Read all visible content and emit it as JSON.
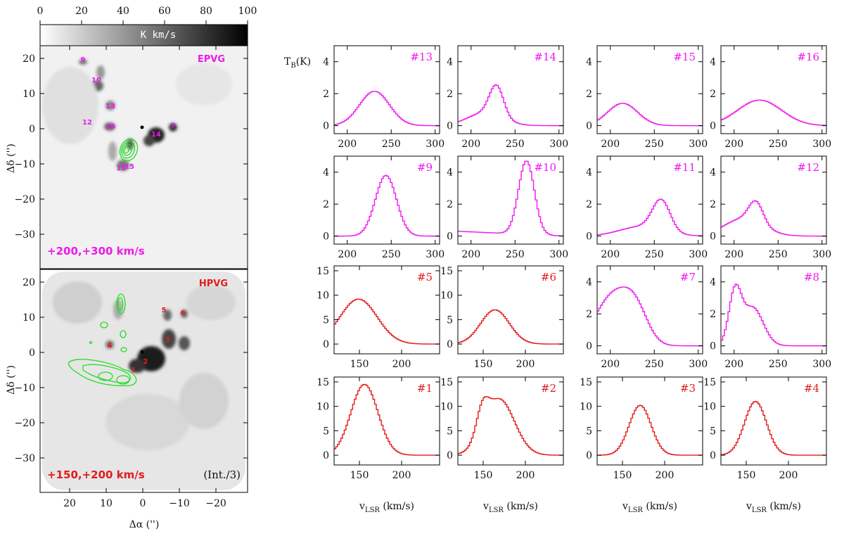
{
  "colors": {
    "magenta": "#ee18ee",
    "red": "#e21b1b",
    "contour": "#22dd22",
    "gray_note": "#9a9a9a"
  },
  "colorbar": {
    "ticks": [
      "0",
      "20",
      "40",
      "60",
      "80",
      "100"
    ],
    "label": "K km/s"
  },
  "maps": {
    "y_ticks": [
      "20",
      "10",
      "0",
      "−10",
      "−20",
      "−30"
    ],
    "x_ticks": [
      "20",
      "10",
      "0",
      "−10",
      "−20"
    ],
    "ylabel": "Δδ ('')",
    "xlabel": "Δα ('')",
    "top": {
      "tag": "EPVG",
      "range": "+200,+300 km/s",
      "markers": [
        "9",
        "10",
        "13",
        "12",
        "16",
        "14",
        "7",
        "11",
        "15"
      ]
    },
    "bottom": {
      "tag": "HPVG",
      "range": "+150,+200 km/s",
      "note": "(Int./3)",
      "markers": [
        "5",
        "6",
        "3",
        "4",
        "2",
        "1"
      ]
    }
  },
  "spectra": {
    "ylabel": "TB(K)",
    "xlabel": "vLSR (km/s)"
  },
  "chart_data": [
    {
      "type": "line",
      "id": "#13",
      "color": "magenta",
      "xlim": [
        185,
        305
      ],
      "ylim": [
        -0.5,
        5
      ],
      "xticks": [
        200,
        250,
        300
      ],
      "yticks": [
        0,
        2,
        4
      ],
      "gauss": [
        [
          2.15,
          230,
          17
        ]
      ]
    },
    {
      "type": "line",
      "id": "#14",
      "color": "magenta",
      "xlim": [
        185,
        305
      ],
      "ylim": [
        -0.5,
        5
      ],
      "xticks": [
        200,
        250,
        300
      ],
      "yticks": [
        0,
        2,
        4
      ],
      "gauss": [
        [
          1.9,
          228,
          8
        ],
        [
          0.8,
          215,
          20
        ]
      ]
    },
    {
      "type": "line",
      "id": "#15",
      "color": "magenta",
      "xlim": [
        185,
        305
      ],
      "ylim": [
        -0.5,
        5
      ],
      "xticks": [
        200,
        250,
        300
      ],
      "yticks": [
        0,
        2,
        4
      ],
      "gauss": [
        [
          1.4,
          213,
          17
        ]
      ]
    },
    {
      "type": "line",
      "id": "#16",
      "color": "magenta",
      "xlim": [
        185,
        305
      ],
      "ylim": [
        -0.5,
        5
      ],
      "xticks": [
        200,
        250,
        300
      ],
      "yticks": [
        0,
        2,
        4
      ],
      "gauss": [
        [
          1.6,
          228,
          25
        ]
      ]
    },
    {
      "type": "line",
      "id": "#9",
      "color": "magenta",
      "xlim": [
        185,
        305
      ],
      "ylim": [
        -0.5,
        5
      ],
      "xticks": [
        200,
        250,
        300
      ],
      "yticks": [
        0,
        2,
        4
      ],
      "gauss": [
        [
          3.8,
          243,
          12
        ]
      ]
    },
    {
      "type": "line",
      "id": "#10",
      "color": "magenta",
      "xlim": [
        185,
        305
      ],
      "ylim": [
        -0.5,
        5
      ],
      "xticks": [
        200,
        250,
        300
      ],
      "yticks": [
        0,
        2,
        4
      ],
      "gauss": [
        [
          4.6,
          262,
          9
        ]
      ],
      "base": 0.3
    },
    {
      "type": "line",
      "id": "#11",
      "color": "magenta",
      "xlim": [
        185,
        305
      ],
      "ylim": [
        -0.5,
        5
      ],
      "xticks": [
        200,
        250,
        300
      ],
      "yticks": [
        0,
        2,
        4
      ],
      "gauss": [
        [
          1.9,
          257,
          10
        ],
        [
          0.6,
          235,
          25
        ]
      ]
    },
    {
      "type": "line",
      "id": "#12",
      "color": "magenta",
      "xlim": [
        185,
        305
      ],
      "ylim": [
        -0.5,
        5
      ],
      "xticks": [
        200,
        250,
        300
      ],
      "yticks": [
        0,
        2,
        4
      ],
      "gauss": [
        [
          1.3,
          224,
          8
        ],
        [
          1.1,
          210,
          22
        ]
      ]
    },
    {
      "type": "line",
      "id": "#5",
      "color": "red",
      "xlim": [
        120,
        245
      ],
      "ylim": [
        -2,
        16
      ],
      "xticks": [
        150,
        200
      ],
      "yticks": [
        0,
        5,
        10,
        15
      ],
      "gauss": [
        [
          9.2,
          148,
          22
        ]
      ]
    },
    {
      "type": "line",
      "id": "#6",
      "color": "red",
      "xlim": [
        120,
        245
      ],
      "ylim": [
        -2,
        16
      ],
      "xticks": [
        150,
        200
      ],
      "yticks": [
        0,
        5,
        10,
        15
      ],
      "gauss": [
        [
          7.0,
          163,
          17
        ]
      ]
    },
    {
      "type": "line",
      "id": "#7",
      "color": "magenta",
      "xlim": [
        185,
        305
      ],
      "ylim": [
        -0.5,
        5
      ],
      "xticks": [
        200,
        250,
        300
      ],
      "yticks": [
        0,
        2,
        4
      ],
      "gauss": [
        [
          3.1,
          202,
          20
        ],
        [
          1.8,
          228,
          14
        ]
      ]
    },
    {
      "type": "line",
      "id": "#8",
      "color": "magenta",
      "xlim": [
        185,
        305
      ],
      "ylim": [
        -0.5,
        5
      ],
      "xticks": [
        200,
        250,
        300
      ],
      "yticks": [
        0,
        2,
        4
      ],
      "gauss": [
        [
          3.2,
          200,
          7
        ],
        [
          2.4,
          220,
          12
        ]
      ]
    },
    {
      "type": "line",
      "id": "#1",
      "color": "red",
      "xlim": [
        120,
        245
      ],
      "ylim": [
        -2,
        16
      ],
      "xticks": [
        150,
        200
      ],
      "yticks": [
        0,
        5,
        10,
        15
      ],
      "gauss": [
        [
          14.5,
          155,
          16
        ]
      ]
    },
    {
      "type": "line",
      "id": "#2",
      "color": "red",
      "xlim": [
        120,
        245
      ],
      "ylim": [
        -2,
        16
      ],
      "xticks": [
        150,
        200
      ],
      "yticks": [
        0,
        5,
        10,
        15
      ],
      "gauss": [
        [
          11.5,
          168,
          18
        ],
        [
          5.0,
          148,
          7
        ]
      ]
    },
    {
      "type": "line",
      "id": "#3",
      "color": "red",
      "xlim": [
        120,
        245
      ],
      "ylim": [
        -2,
        16
      ],
      "xticks": [
        150,
        200
      ],
      "yticks": [
        0,
        5,
        10,
        15
      ],
      "gauss": [
        [
          10.2,
          170,
          13
        ]
      ]
    },
    {
      "type": "line",
      "id": "#4",
      "color": "red",
      "xlim": [
        120,
        245
      ],
      "ylim": [
        -2,
        16
      ],
      "xticks": [
        150,
        200
      ],
      "yticks": [
        0,
        5,
        10,
        15
      ],
      "gauss": [
        [
          11.0,
          160,
          13
        ]
      ]
    }
  ]
}
